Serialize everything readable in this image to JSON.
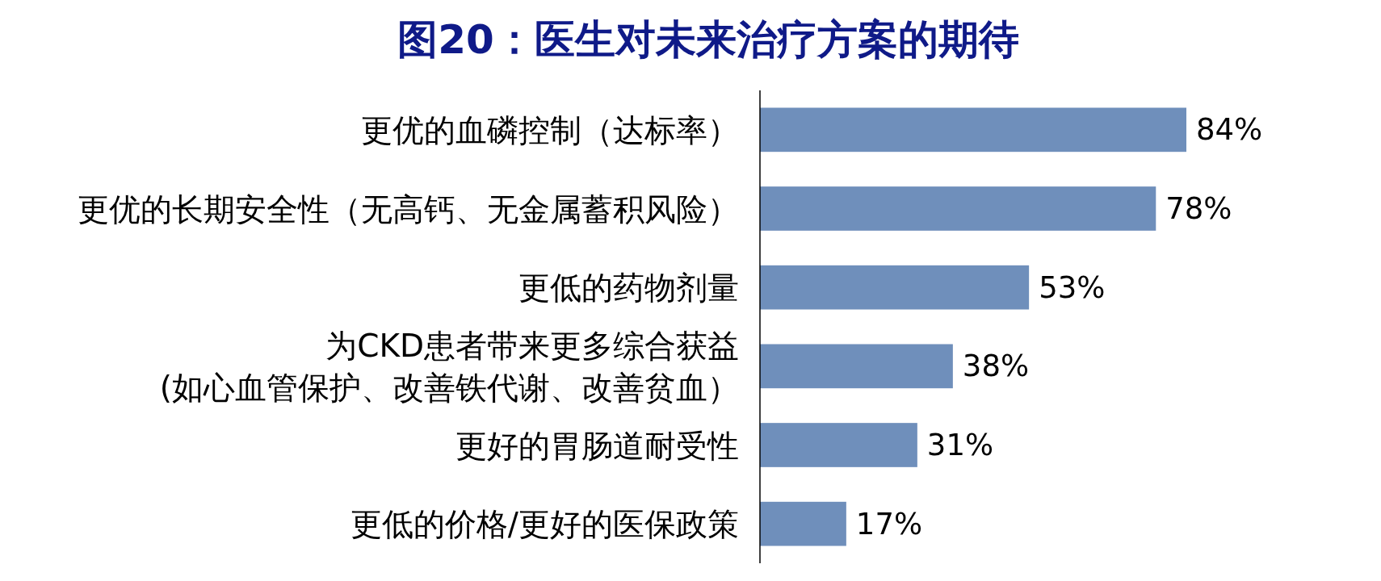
{
  "chart_data": {
    "type": "bar",
    "orientation": "horizontal",
    "title": "图20：医生对未来治疗方案的期待",
    "categories": [
      "更优的血磷控制（达标率）",
      "更优的长期安全性（无高钙、无金属蓄积风险）",
      "更低的药物剂量",
      "为CKD患者带来更多综合获益\n(如心血管保护、改善铁代谢、改善贫血）",
      "更好的胃肠道耐受性",
      "更低的价格/更好的医保政策"
    ],
    "values": [
      84,
      78,
      53,
      38,
      31,
      17
    ],
    "value_labels": [
      "84%",
      "78%",
      "53%",
      "38%",
      "31%",
      "17%"
    ],
    "color": "#6f8fbb",
    "tick_labels": "y"
  }
}
